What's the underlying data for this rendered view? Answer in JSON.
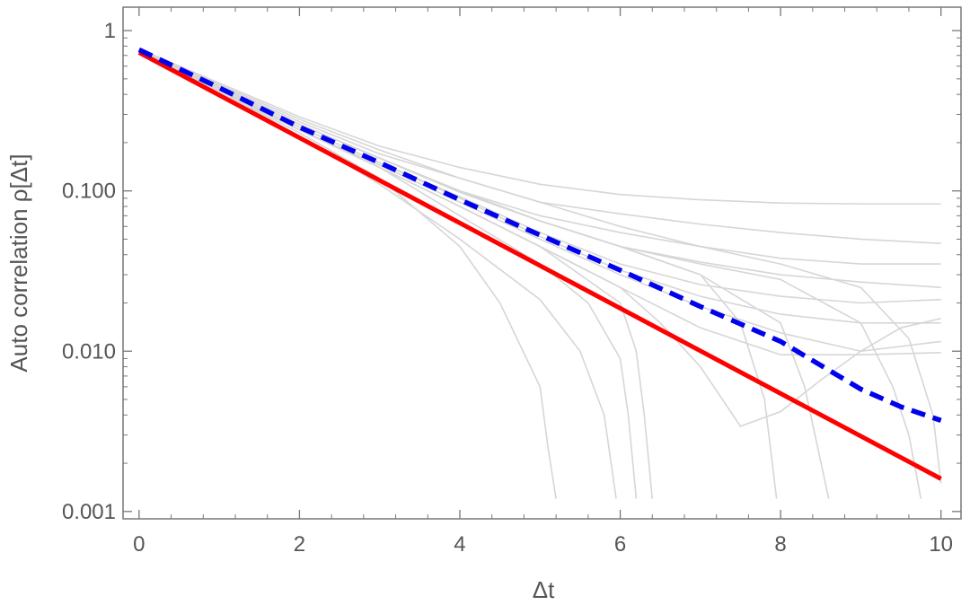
{
  "chart_data": {
    "type": "line",
    "xlabel": "Δt",
    "ylabel": "Auto correlation ρ[Δt]",
    "xlim": [
      -0.2,
      10.25
    ],
    "ylim": [
      0.0009,
      1.4
    ],
    "y_scale": "log",
    "grid": false,
    "x_ticks": [
      0,
      2,
      4,
      6,
      8,
      10
    ],
    "x_tick_labels": [
      "0",
      "2",
      "4",
      "6",
      "8",
      "10"
    ],
    "y_ticks": [
      1,
      0.1,
      0.01,
      0.001
    ],
    "y_tick_labels": [
      "1",
      "0.100",
      "0.010",
      "0.001"
    ],
    "colors": {
      "red_line": "#ff0000",
      "blue_dashed": "#0000ee",
      "background_series": "#d6d6d6",
      "frame": "#777777"
    },
    "series": [
      {
        "style": "solid",
        "color": "red",
        "x": [
          0,
          10
        ],
        "y": [
          0.73,
          0.0016
        ]
      },
      {
        "style": "dashed",
        "color": "blue",
        "x": [
          0,
          1,
          2,
          3,
          4,
          5,
          6,
          7,
          8,
          9,
          9.5,
          10
        ],
        "y": [
          0.76,
          0.44,
          0.25,
          0.15,
          0.088,
          0.053,
          0.032,
          0.019,
          0.0115,
          0.0058,
          0.0045,
          0.0037
        ]
      },
      {
        "style": "thin",
        "color": "lightgray",
        "x": [
          0,
          1,
          2,
          3,
          4,
          5,
          6,
          7,
          8,
          9,
          10
        ],
        "y": [
          0.77,
          0.47,
          0.29,
          0.19,
          0.14,
          0.11,
          0.095,
          0.088,
          0.084,
          0.083,
          0.083
        ]
      },
      {
        "style": "thin",
        "color": "lightgray",
        "x": [
          0,
          1,
          2,
          3,
          4,
          5,
          6,
          7,
          8,
          9,
          10
        ],
        "y": [
          0.76,
          0.45,
          0.27,
          0.17,
          0.12,
          0.085,
          0.072,
          0.062,
          0.055,
          0.05,
          0.047
        ]
      },
      {
        "style": "thin",
        "color": "lightgray",
        "x": [
          0,
          1,
          2,
          3,
          4,
          5,
          6,
          7,
          8,
          9,
          10
        ],
        "y": [
          0.75,
          0.44,
          0.26,
          0.16,
          0.1,
          0.07,
          0.055,
          0.045,
          0.038,
          0.035,
          0.035
        ]
      },
      {
        "style": "thin",
        "color": "lightgray",
        "x": [
          0,
          1,
          2,
          3,
          4,
          5,
          6,
          7,
          8,
          9,
          10
        ],
        "y": [
          0.76,
          0.44,
          0.26,
          0.16,
          0.098,
          0.065,
          0.045,
          0.036,
          0.03,
          0.027,
          0.025
        ]
      },
      {
        "style": "thin",
        "color": "lightgray",
        "x": [
          0,
          1,
          2,
          3,
          4,
          5,
          6,
          7,
          8,
          9,
          10
        ],
        "y": [
          0.74,
          0.43,
          0.25,
          0.15,
          0.092,
          0.055,
          0.035,
          0.026,
          0.022,
          0.02,
          0.021
        ]
      },
      {
        "style": "thin",
        "color": "lightgray",
        "x": [
          0,
          1,
          2,
          3,
          4,
          5,
          6,
          7,
          8,
          9,
          10
        ],
        "y": [
          0.75,
          0.43,
          0.25,
          0.15,
          0.09,
          0.052,
          0.032,
          0.022,
          0.017,
          0.015,
          0.015
        ]
      },
      {
        "style": "thin",
        "color": "lightgray",
        "x": [
          0,
          1,
          2,
          3,
          4,
          5,
          6,
          7,
          8,
          9,
          10
        ],
        "y": [
          0.74,
          0.42,
          0.24,
          0.145,
          0.085,
          0.05,
          0.03,
          0.019,
          0.013,
          0.01,
          0.0115
        ]
      },
      {
        "style": "thin",
        "color": "lightgray",
        "x": [
          0,
          1,
          2,
          3,
          4,
          5,
          6,
          7,
          8,
          9,
          10
        ],
        "y": [
          0.75,
          0.43,
          0.24,
          0.14,
          0.08,
          0.045,
          0.025,
          0.014,
          0.0095,
          0.0095,
          0.0098
        ]
      },
      {
        "style": "thin",
        "color": "lightgray",
        "x": [
          0,
          1,
          2,
          3,
          4,
          5,
          6,
          6.5,
          7,
          7.5,
          8,
          8.5,
          9,
          9.5,
          10
        ],
        "y": [
          0.75,
          0.43,
          0.24,
          0.14,
          0.08,
          0.045,
          0.025,
          0.015,
          0.008,
          0.0034,
          0.0042,
          0.0066,
          0.01,
          0.014,
          0.016
        ]
      },
      {
        "style": "thin",
        "color": "lightgray",
        "x": [
          0,
          1,
          2,
          3,
          4,
          4.5,
          5,
          5.1,
          5.2
        ],
        "y": [
          0.74,
          0.42,
          0.23,
          0.12,
          0.045,
          0.02,
          0.006,
          0.0025,
          0.0012
        ]
      },
      {
        "style": "thin",
        "color": "lightgray",
        "x": [
          0,
          1,
          2,
          3,
          4,
          5,
          5.5,
          5.8,
          5.95
        ],
        "y": [
          0.74,
          0.42,
          0.22,
          0.11,
          0.05,
          0.021,
          0.01,
          0.004,
          0.0012
        ]
      },
      {
        "style": "thin",
        "color": "lightgray",
        "x": [
          0,
          1,
          2,
          3,
          4,
          5,
          5.6,
          6.0,
          6.1,
          6.2
        ],
        "y": [
          0.75,
          0.43,
          0.24,
          0.14,
          0.07,
          0.035,
          0.02,
          0.009,
          0.004,
          0.0012
        ]
      },
      {
        "style": "thin",
        "color": "lightgray",
        "x": [
          0,
          1,
          2,
          3,
          4,
          5,
          6,
          6.2,
          6.3,
          6.4
        ],
        "y": [
          0.75,
          0.43,
          0.24,
          0.14,
          0.08,
          0.045,
          0.02,
          0.01,
          0.004,
          0.0012
        ]
      },
      {
        "style": "thin",
        "color": "lightgray",
        "x": [
          0,
          1,
          2,
          3,
          4,
          5,
          6,
          7,
          7.5,
          7.8,
          7.95
        ],
        "y": [
          0.76,
          0.44,
          0.26,
          0.16,
          0.1,
          0.065,
          0.045,
          0.03,
          0.015,
          0.005,
          0.0012
        ]
      },
      {
        "style": "thin",
        "color": "lightgray",
        "x": [
          0,
          1,
          2,
          3,
          4,
          5,
          6,
          7,
          8,
          8.3,
          8.6
        ],
        "y": [
          0.76,
          0.44,
          0.26,
          0.16,
          0.1,
          0.065,
          0.045,
          0.03,
          0.015,
          0.006,
          0.0012
        ]
      },
      {
        "style": "thin",
        "color": "lightgray",
        "x": [
          0,
          1,
          2,
          3,
          4,
          5,
          6,
          7,
          8,
          9,
          9.4,
          9.6,
          9.75
        ],
        "y": [
          0.76,
          0.44,
          0.26,
          0.16,
          0.1,
          0.065,
          0.045,
          0.035,
          0.028,
          0.015,
          0.006,
          0.003,
          0.0012
        ]
      },
      {
        "style": "thin",
        "color": "lightgray",
        "x": [
          0,
          1,
          2,
          3,
          4,
          5,
          6,
          7,
          8,
          9,
          9.6,
          9.9,
          10
        ],
        "y": [
          0.77,
          0.46,
          0.28,
          0.18,
          0.12,
          0.085,
          0.06,
          0.045,
          0.035,
          0.025,
          0.012,
          0.004,
          0.0015
        ]
      }
    ]
  }
}
